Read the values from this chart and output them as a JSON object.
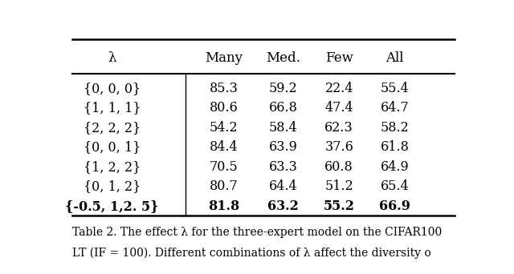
{
  "col_headers": [
    "λ",
    "Many",
    "Med.",
    "Few",
    "All"
  ],
  "rows": [
    [
      "{0, 0, 0}",
      "85.3",
      "59.2",
      "22.4",
      "55.4"
    ],
    [
      "{1, 1, 1}",
      "80.6",
      "66.8",
      "47.4",
      "64.7"
    ],
    [
      "{2, 2, 2}",
      "54.2",
      "58.4",
      "62.3",
      "58.2"
    ],
    [
      "{0, 0, 1}",
      "84.4",
      "63.9",
      "37.6",
      "61.8"
    ],
    [
      "{1, 2, 2}",
      "70.5",
      "63.3",
      "60.8",
      "64.9"
    ],
    [
      "{0, 1, 2}",
      "80.7",
      "64.4",
      "51.2",
      "65.4"
    ],
    [
      "{-0.5, 1,2. 5}",
      "81.8",
      "63.2",
      "55.2",
      "66.9"
    ]
  ],
  "bold_last_row": true,
  "caption": "Table 2. The effect λ for the three-expert model on the CIFAR100",
  "caption2": "LT (IF = 100). Different combinations of λ affect the diversity o",
  "bg_color": "#ffffff",
  "text_color": "#000000",
  "font_size": 11.5,
  "header_font_size": 12,
  "caption_font_size": 10
}
